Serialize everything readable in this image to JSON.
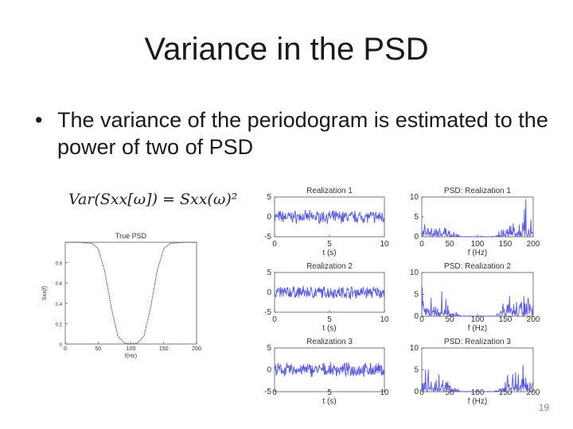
{
  "slide": {
    "title": "Variance in the PSD",
    "bullet_symbol": "•",
    "bullet_text": "The variance of the periodogram is estimated to the power of two of PSD",
    "formula": "Var(Sxx[ω]) = Sxx(ω)²",
    "page_number": "19"
  },
  "colors": {
    "signal": "#5a5adc",
    "curve": "#444444"
  },
  "chart_data": [
    {
      "type": "line",
      "title": "True PSD",
      "xlabel": "f(Hz)",
      "ylabel": "Sxx(f)",
      "xlim": [
        0,
        200
      ],
      "ylim": [
        0,
        1
      ],
      "x_ticks": [
        "0",
        "50",
        "100",
        "150",
        "200"
      ],
      "y_ticks": [
        "0",
        "0.2",
        "0.4",
        "0.6",
        "0.8"
      ],
      "x": [
        0,
        20,
        40,
        50,
        60,
        70,
        80,
        90,
        100,
        110,
        120,
        130,
        140,
        150,
        160,
        180,
        200
      ],
      "values": [
        1,
        1,
        0.99,
        0.94,
        0.72,
        0.36,
        0.08,
        0.01,
        0,
        0.01,
        0.08,
        0.36,
        0.72,
        0.94,
        0.99,
        1,
        1
      ]
    },
    {
      "type": "line",
      "title": "Realization 1",
      "xlabel": "t (s)",
      "xlim": [
        0,
        10
      ],
      "ylim": [
        -5,
        5
      ],
      "x_ticks": [
        "0",
        "5",
        "10"
      ],
      "y_ticks": [
        "5",
        "0",
        "-5"
      ]
    },
    {
      "type": "line",
      "title": "Realization 2",
      "xlabel": "t (s)",
      "xlim": [
        0,
        10
      ],
      "ylim": [
        -5,
        5
      ],
      "x_ticks": [
        "0",
        "5",
        "10"
      ],
      "y_ticks": [
        "5",
        "0",
        "-5"
      ]
    },
    {
      "type": "line",
      "title": "Realization 3",
      "xlabel": "t (s)",
      "xlim": [
        0,
        10
      ],
      "ylim": [
        -5,
        5
      ],
      "x_ticks": [
        "0",
        "5",
        "10"
      ],
      "y_ticks": [
        "5",
        "0",
        "-5"
      ]
    },
    {
      "type": "line",
      "title": "PSD: Realization 1",
      "xlabel": "f (Hz)",
      "xlim": [
        0,
        200
      ],
      "ylim": [
        0,
        10
      ],
      "x_ticks": [
        "0",
        "50",
        "100",
        "150",
        "200"
      ],
      "y_ticks": [
        "10",
        "5",
        "0"
      ]
    },
    {
      "type": "line",
      "title": "PSD: Realization 2",
      "xlabel": "f (Hz)",
      "xlim": [
        0,
        200
      ],
      "ylim": [
        0,
        10
      ],
      "x_ticks": [
        "0",
        "50",
        "100",
        "150",
        "200"
      ],
      "y_ticks": [
        "10",
        "5",
        "0"
      ]
    },
    {
      "type": "line",
      "title": "PSD: Realization 3",
      "xlabel": "f (Hz)",
      "xlim": [
        0,
        200
      ],
      "ylim": [
        0,
        10
      ],
      "x_ticks": [
        "0",
        "50",
        "100",
        "150",
        "200"
      ],
      "y_ticks": [
        "10",
        "5",
        "0"
      ]
    }
  ]
}
